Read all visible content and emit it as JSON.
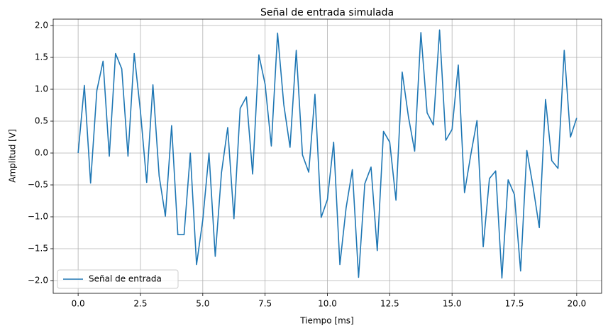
{
  "chart_data": {
    "type": "line",
    "title": "Señal de entrada simulada",
    "xlabel": "Tiempo [ms]",
    "ylabel": "Amplitud [V]",
    "x": [
      0,
      0.25,
      0.5,
      0.75,
      1,
      1.25,
      1.5,
      1.75,
      2,
      2.25,
      2.5,
      2.75,
      3,
      3.25,
      3.5,
      3.75,
      4,
      4.25,
      4.5,
      4.75,
      5,
      5.25,
      5.5,
      5.75,
      6,
      6.25,
      6.5,
      6.75,
      7,
      7.25,
      7.5,
      7.75,
      8,
      8.25,
      8.5,
      8.75,
      9,
      9.25,
      9.5,
      9.75,
      10,
      10.25,
      10.5,
      10.75,
      11,
      11.25,
      11.5,
      11.75,
      12,
      12.25,
      12.5,
      12.75,
      13,
      13.25,
      13.5,
      13.75,
      14,
      14.25,
      14.5,
      14.75,
      15,
      15.25,
      15.5,
      15.75,
      16,
      16.25,
      16.5,
      16.75,
      17,
      17.25,
      17.5,
      17.75,
      18,
      18.25,
      18.5,
      18.75,
      19,
      19.25,
      19.5,
      19.75,
      20
    ],
    "series": [
      {
        "name": "Señal de entrada",
        "color": "#1f77b4",
        "values": [
          0,
          1.06,
          -0.47,
          0.98,
          1.44,
          -0.05,
          1.56,
          1.32,
          -0.05,
          1.56,
          0.65,
          -0.46,
          1.07,
          -0.36,
          -0.99,
          0.43,
          -1.28,
          -1.28,
          0.0,
          -1.75,
          -1.05,
          0.0,
          -1.62,
          -0.31,
          0.4,
          -1.03,
          0.7,
          0.88,
          -0.33,
          1.54,
          1.08,
          0.11,
          1.88,
          0.76,
          0.09,
          1.61,
          -0.03,
          -0.3,
          0.92,
          -1.01,
          -0.73,
          0.17,
          -1.75,
          -0.86,
          -0.26,
          -1.95,
          -0.48,
          -0.22,
          -1.53,
          0.34,
          0.17,
          -0.74,
          1.27,
          0.57,
          0.03,
          1.89,
          0.63,
          0.44,
          1.93,
          0.2,
          0.37,
          1.38,
          -0.62,
          -0.03,
          0.51,
          -1.47,
          -0.4,
          -0.28,
          -1.96,
          -0.42,
          -0.65,
          -1.85,
          0.04,
          -0.53,
          -1.17,
          0.84,
          -0.12,
          -0.24,
          1.61,
          0.25,
          0.55
        ]
      }
    ],
    "xlim": [
      -1,
      21
    ],
    "xticks": [
      {
        "value": 0,
        "label": "0.0"
      },
      {
        "value": 2.5,
        "label": "2.5"
      },
      {
        "value": 5,
        "label": "5.0"
      },
      {
        "value": 7.5,
        "label": "7.5"
      },
      {
        "value": 10,
        "label": "10.0"
      },
      {
        "value": 12.5,
        "label": "12.5"
      },
      {
        "value": 15,
        "label": "15.0"
      },
      {
        "value": 17.5,
        "label": "17.5"
      },
      {
        "value": 20,
        "label": "20.0"
      }
    ],
    "ylim": [
      -2.2,
      2.1
    ],
    "yticks": [
      {
        "value": -2,
        "label": "−2.0"
      },
      {
        "value": -1.5,
        "label": "−1.5"
      },
      {
        "value": -1,
        "label": "−1.0"
      },
      {
        "value": -0.5,
        "label": "−0.5"
      },
      {
        "value": 0,
        "label": "0.0"
      },
      {
        "value": 0.5,
        "label": "0.5"
      },
      {
        "value": 1,
        "label": "1.0"
      },
      {
        "value": 1.5,
        "label": "1.5"
      },
      {
        "value": 2,
        "label": "2.0"
      }
    ],
    "grid": true,
    "legend": "lower left"
  }
}
